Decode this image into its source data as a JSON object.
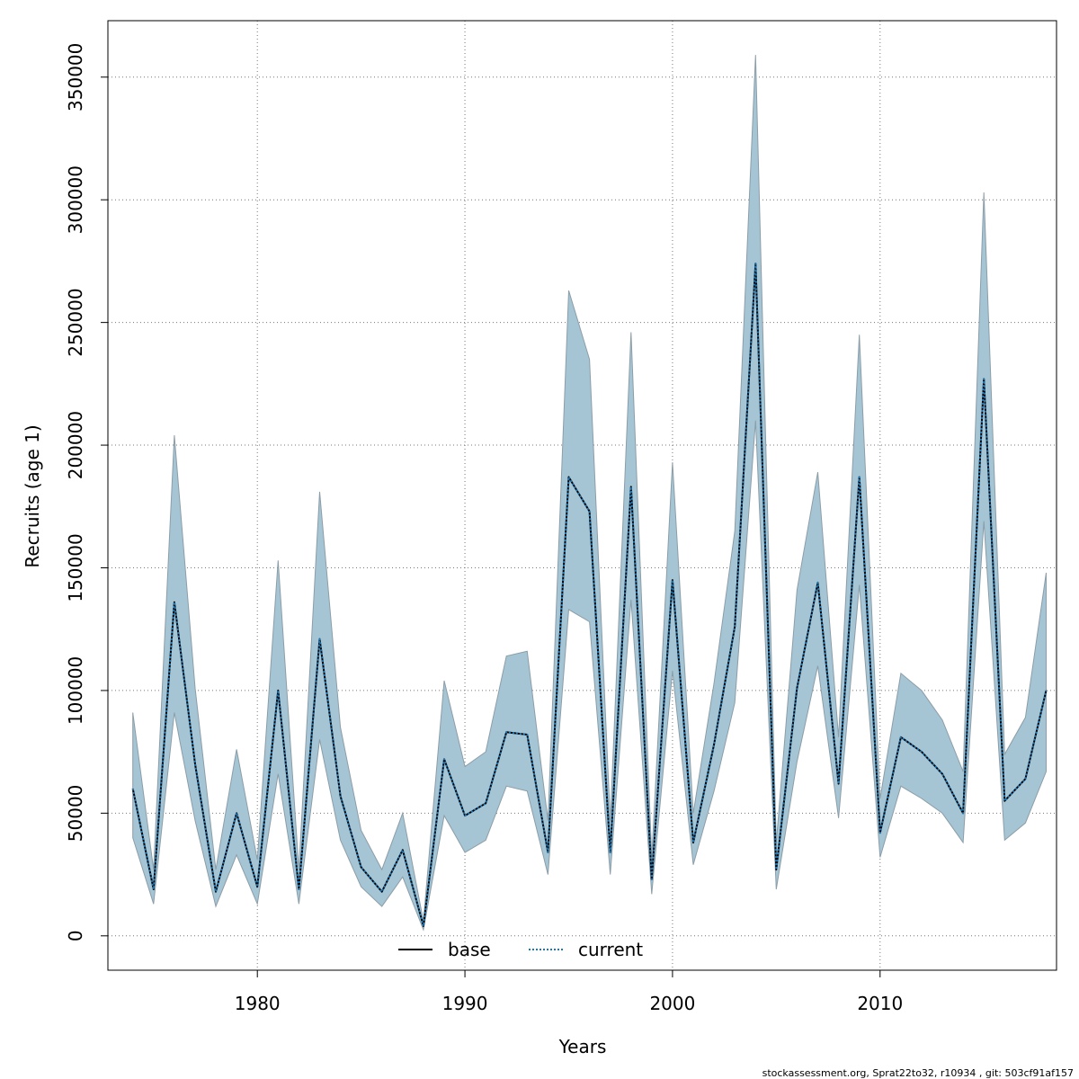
{
  "chart_data": {
    "type": "area",
    "title": "",
    "xlabel": "Years",
    "ylabel": "Recruits (age 1)",
    "xlim": [
      1972.8,
      2018.5
    ],
    "ylim": [
      -14000,
      373000
    ],
    "x_ticks": [
      1980,
      1990,
      2000,
      2010
    ],
    "y_ticks": [
      0,
      50000,
      100000,
      150000,
      200000,
      250000,
      300000,
      350000
    ],
    "x_tick_labels": [
      "1980",
      "1990",
      "2000",
      "2010"
    ],
    "y_tick_labels": [
      "0",
      "50000",
      "100000",
      "150000",
      "200000",
      "250000",
      "300000",
      "350000"
    ],
    "grid": true,
    "grid_style": "dotted",
    "legend_position": "bottom-center",
    "x": [
      1974,
      1975,
      1976,
      1977,
      1978,
      1979,
      1980,
      1981,
      1982,
      1983,
      1984,
      1985,
      1986,
      1987,
      1988,
      1989,
      1990,
      1991,
      1992,
      1993,
      1994,
      1995,
      1996,
      1997,
      1998,
      1999,
      2000,
      2001,
      2002,
      2003,
      2004,
      2005,
      2006,
      2007,
      2008,
      2009,
      2010,
      2011,
      2012,
      2013,
      2014,
      2015,
      2016,
      2017,
      2018
    ],
    "series": [
      {
        "name": "base",
        "style": "solid",
        "color": "#000000",
        "values": [
          60000,
          19000,
          136000,
          70000,
          18000,
          50000,
          20000,
          100000,
          19000,
          121000,
          57000,
          28000,
          18000,
          35000,
          4000,
          72000,
          49000,
          54000,
          83000,
          82000,
          34000,
          187000,
          173000,
          34000,
          183000,
          23000,
          145000,
          38000,
          78000,
          126000,
          274000,
          27000,
          101000,
          144000,
          62000,
          187000,
          42000,
          81000,
          75000,
          66000,
          50000,
          227000,
          55000,
          64000,
          100000
        ]
      },
      {
        "name": "current",
        "style": "dotted",
        "color": "#1f77b4",
        "values": [
          60000,
          19000,
          136000,
          70000,
          18000,
          50000,
          20000,
          100000,
          19000,
          121000,
          57000,
          28000,
          18000,
          35000,
          4000,
          72000,
          49000,
          54000,
          83000,
          82000,
          34000,
          187000,
          173000,
          34000,
          183000,
          23000,
          145000,
          38000,
          78000,
          126000,
          274000,
          27000,
          101000,
          144000,
          62000,
          187000,
          42000,
          81000,
          75000,
          66000,
          50000,
          227000,
          55000,
          64000,
          100000
        ]
      }
    ],
    "confidence_band": {
      "color": "#a5c4d4",
      "border": "#8c9ea8",
      "lower": [
        40000,
        13000,
        91000,
        47000,
        12000,
        33000,
        13000,
        66000,
        13000,
        80000,
        39000,
        20000,
        12000,
        24000,
        2500,
        49000,
        34000,
        39000,
        61000,
        59000,
        25000,
        133000,
        128000,
        25000,
        137000,
        17000,
        108000,
        29000,
        59000,
        95000,
        210000,
        19000,
        71000,
        110000,
        48000,
        143000,
        32000,
        61000,
        56000,
        50000,
        38000,
        169000,
        39000,
        46000,
        67000
      ],
      "upper": [
        91000,
        27000,
        204000,
        101000,
        27000,
        76000,
        31000,
        153000,
        27000,
        181000,
        85000,
        43000,
        27000,
        50000,
        6000,
        104000,
        69000,
        75000,
        114000,
        116000,
        47000,
        263000,
        235000,
        47000,
        246000,
        32000,
        193000,
        50000,
        103000,
        165000,
        359000,
        38000,
        141000,
        189000,
        81000,
        245000,
        56000,
        107000,
        100000,
        88000,
        67000,
        303000,
        74000,
        89000,
        148000
      ]
    }
  },
  "legend": {
    "items": [
      {
        "label": "base",
        "style": "solid",
        "color": "#000000"
      },
      {
        "label": "current",
        "style": "dotted",
        "color": "#1f77b4"
      }
    ]
  },
  "footer": {
    "text": "stockassessment.org, Sprat22to32, r10934 , git: 503cf91af157"
  }
}
